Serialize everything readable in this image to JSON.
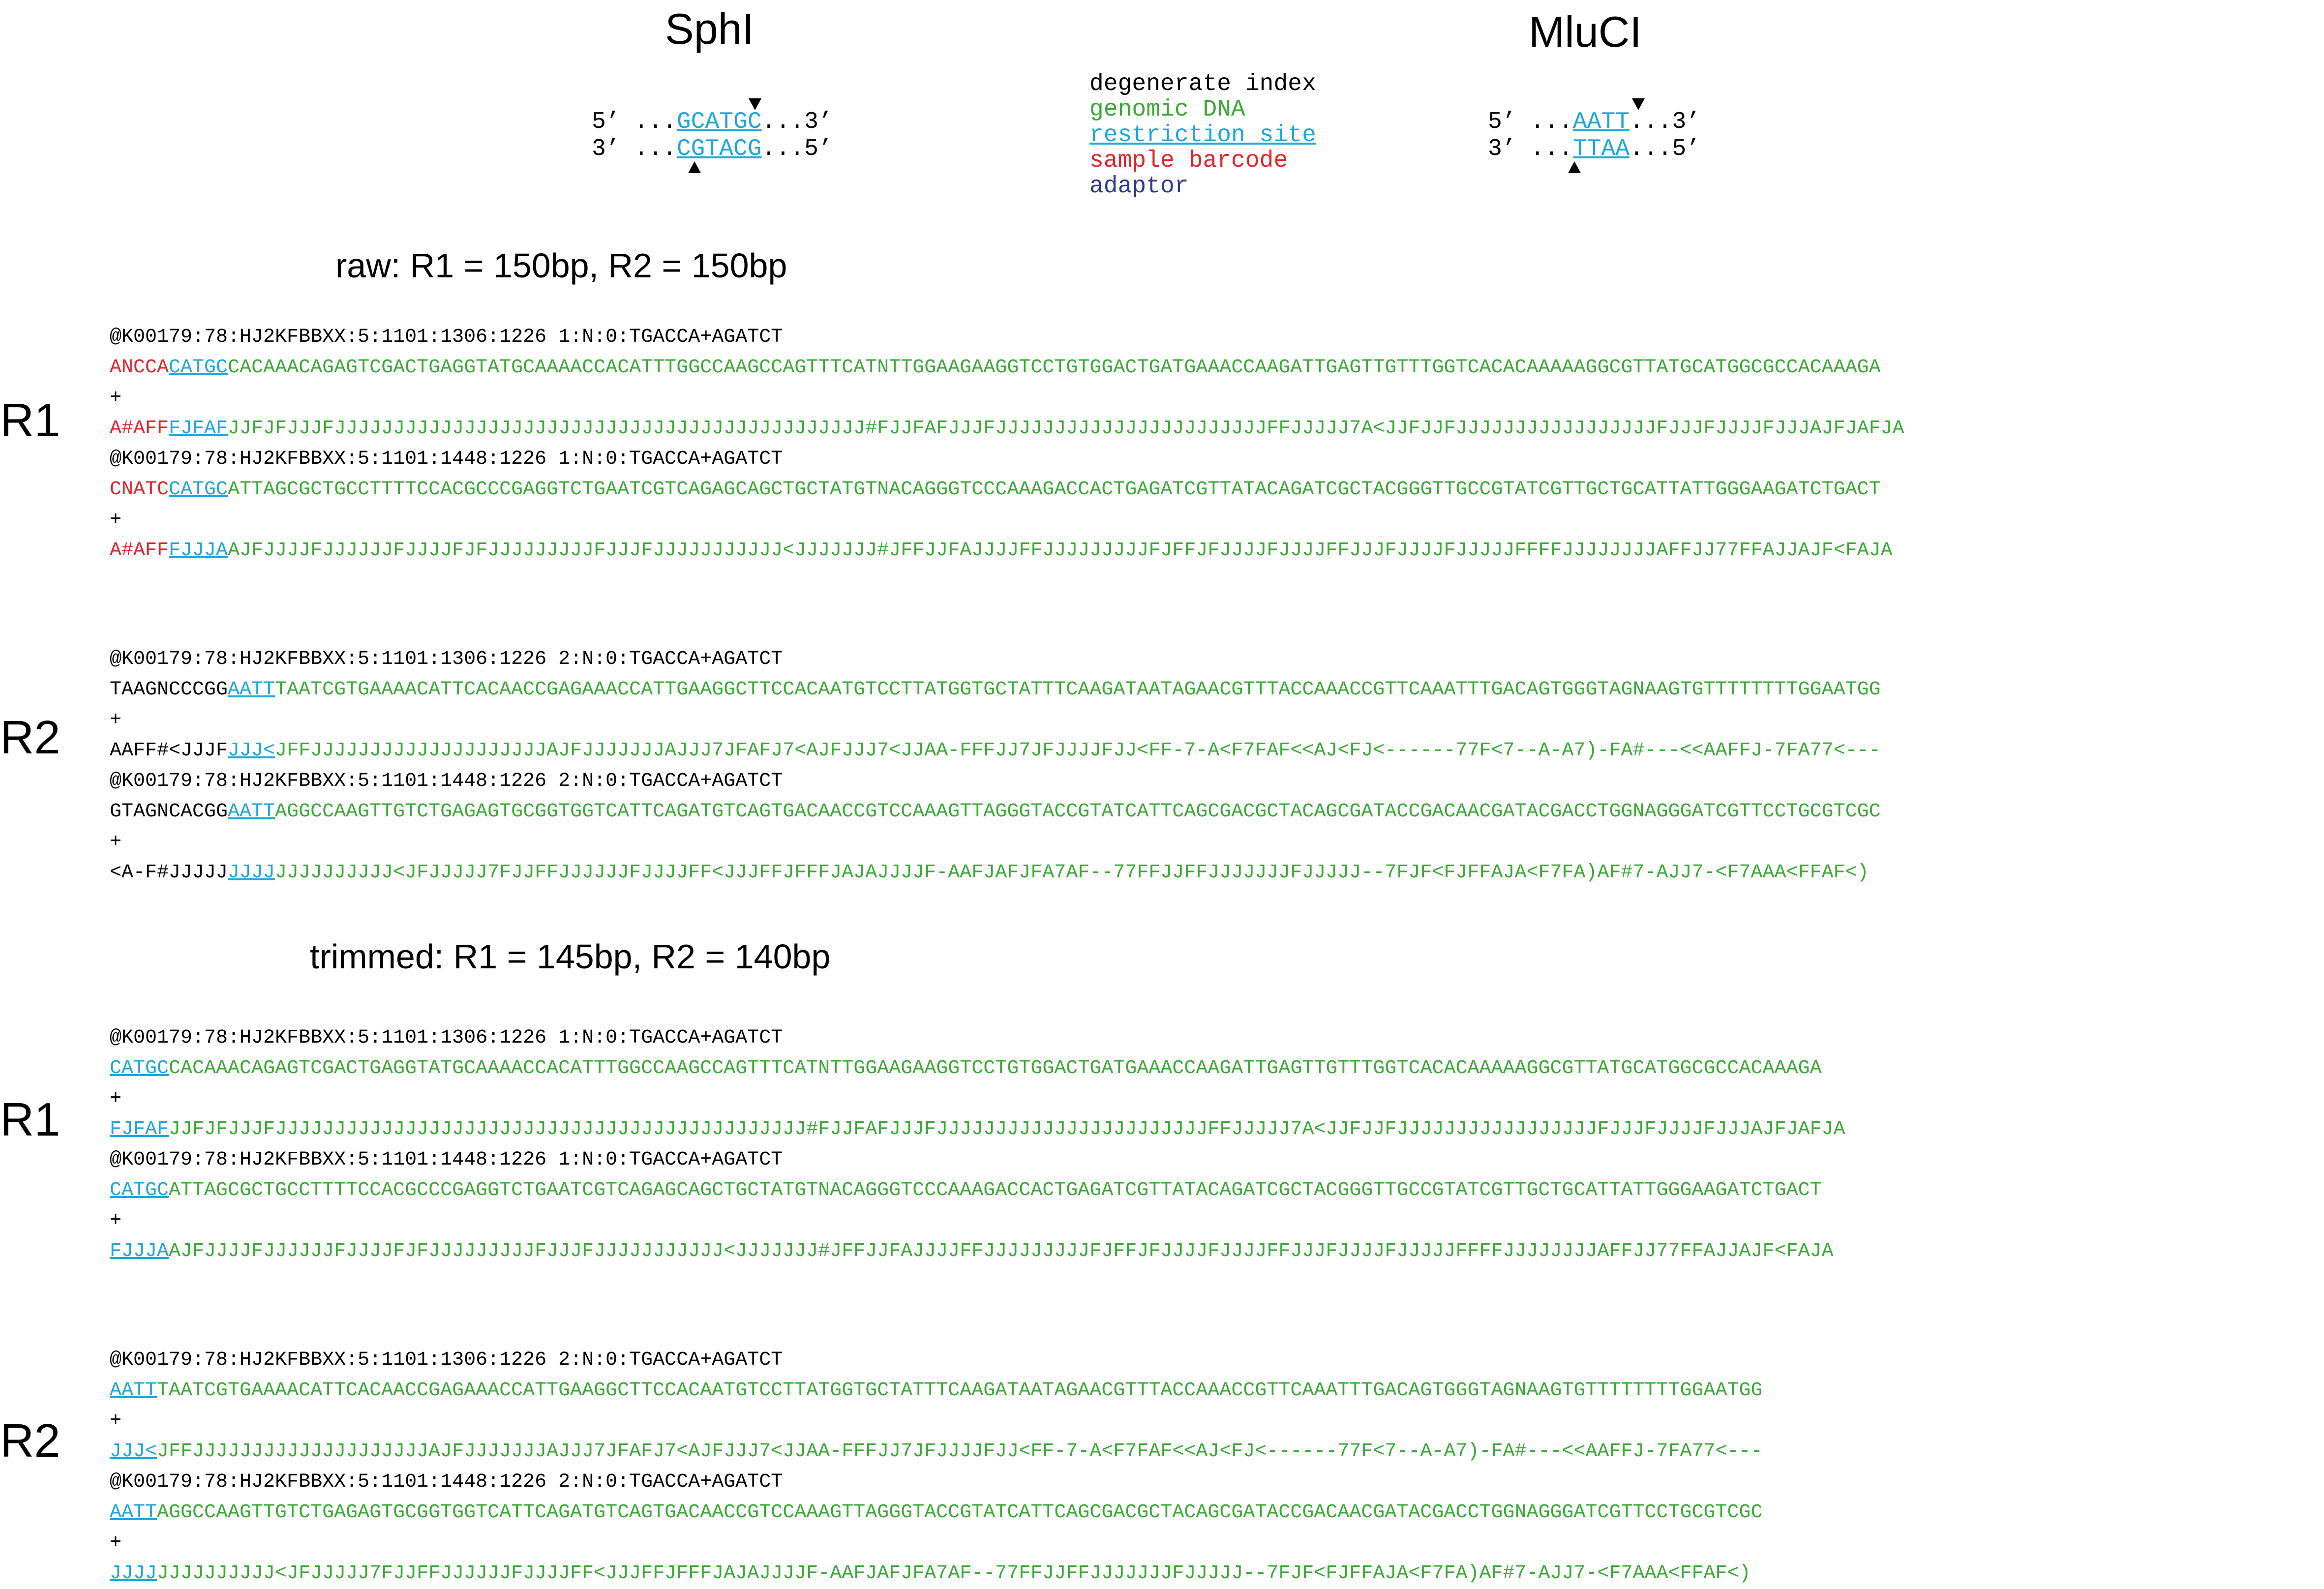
{
  "enzymes": [
    {
      "name": "SphI",
      "top": {
        "pre": "5’ ...",
        "site": "GCATGC",
        "post": "...3’"
      },
      "bottom": {
        "pre": "3’ ...",
        "site": "CGTACG",
        "post": "...5’"
      }
    },
    {
      "name": "MluCI",
      "top": {
        "pre": "5’ ...",
        "site": "AATT",
        "post": "...3’"
      },
      "bottom": {
        "pre": "3’ ...",
        "site": "TTAA",
        "post": "...5’"
      }
    }
  ],
  "legend": {
    "degenerate_index": "degenerate index",
    "genomic_dna": "genomic DNA",
    "restriction_site": "restriction site",
    "sample_barcode": "sample barcode",
    "adaptor": "adaptor"
  },
  "colors": {
    "black": "#000000",
    "genomic": "#3aa935",
    "restriction": "#1ca6dd",
    "barcode": "#e8212a",
    "adaptor": "#2b3990"
  },
  "sections": {
    "raw": {
      "heading": "raw: R1 = 150bp, R2 = 150bp",
      "r1_label": "R1",
      "r2_label": "R2",
      "r1": {
        "read1": {
          "header": "@K00179:78:HJ2KFBBXX:5:1101:1306:1226 1:N:0:TGACCA+AGATCT",
          "seq": {
            "barcode": "ANCCA",
            "site": "CATGC",
            "rest": "CACAAACAGAGTCGACTGAGGTATGCAAAACCACATTTGGCCAAGCCAGTTTCATNTTGGAAGAAGGTCCTGTGGACTGATGAAACCAAGATTGAGTTGTTTGGTCACACAAAAAGGCGTTATGCATGGCGCCACAAAGA"
          },
          "plus": "+",
          "qual": {
            "barcode": "A#AFF",
            "site": "FJFAF",
            "rest": "JJFJFJJJFJJJJJJJJJJJJJJJJJJJJJJJJJJJJJJJJJJJJJJJJJJJJJ#FJJFAFJJJFJJJJJJJJJJJJJJJJJJJJJJJFFJJJJJ7A<JJFJJFJJJJJJJJJJJJJJJJJFJJJFJJJJFJJJAJFJAFJA"
          }
        },
        "read2": {
          "header": "@K00179:78:HJ2KFBBXX:5:1101:1448:1226 1:N:0:TGACCA+AGATCT",
          "seq": {
            "barcode": "CNATC",
            "site": "CATGC",
            "rest": "ATTAGCGCTGCCTTTTCCACGCCCGAGGTCTGAATCGTCAGAGCAGCTGCTATGTNACAGGGTCCCAAAGACCACTGAGATCGTTATACAGATCGCTACGGGTTGCCGTATCGTTGCTGCATTATTGGGAAGATCTGACT"
          },
          "plus": "+",
          "qual": {
            "barcode": "A#AFF",
            "site": "FJJJA",
            "rest": "AJFJJJJFJJJJJJFJJJJFJFJJJJJJJJJFJJJFJJJJJJJJJJJ<JJJJJJJ#JFFJJFAJJJJFFJJJJJJJJJFJFFJFJJJJFJJJJFFJJJFJJJJFJJJJJFFFFJJJJJJJJAFFJJ77FFAJJAJF<FAJA"
          }
        }
      },
      "r2": {
        "read1": {
          "header": "@K00179:78:HJ2KFBBXX:5:1101:1306:1226 2:N:0:TGACCA+AGATCT",
          "seq": {
            "prefix": "TAAGNCCCGG",
            "site": "AATT",
            "rest": "TAATCGTGAAAACATTCACAACCGAGAAACCATTGAAGGCTTCCACAATGTCCTTATGGTGCTATTTCAAGATAATAGAACGTTTACCAAACCGTTCAAATTTGACAGTGGGTAGNAAGTGTTTTTTTTGGAATGG"
          },
          "plus": "+",
          "qual": {
            "prefix": "AAFF#<JJJF",
            "site": "JJJ<",
            "rest": "JFFJJJJJJJJJJJJJJJJJJJJAJFJJJJJJJAJJJ7JFAFJ7<AJFJJJ7<JJAA-FFFJJ7JFJJJJFJJ<FF-7-A<F7FAF<<AJ<FJ<------77F<7--A-A7)-FA#---<<AAFFJ-7FA77<---"
          }
        },
        "read2": {
          "header": "@K00179:78:HJ2KFBBXX:5:1101:1448:1226 2:N:0:TGACCA+AGATCT",
          "seq": {
            "prefix": "GTAGNCACGG",
            "site": "AATT",
            "rest": "AGGCCAAGTTGTCTGAGAGTGCGGTGGTCATTCAGATGTCAGTGACAACCGTCCAAAGTTAGGGTACCGTATCATTCAGCGACGCTACAGCGATACCGACAACGATACGACCTGGNAGGGATCGTTCCTGCGTCGC"
          },
          "plus": "+",
          "qual": {
            "prefix": "<A-F#JJJJJ",
            "site": "JJJJ",
            "rest": "JJJJJJJJJJ<JFJJJJJ7FJJFFJJJJJJFJJJJFF<JJJFFJFFFJAJAJJJJF-AAFJAFJFA7AF--77FFJJFFJJJJJJJFJJJJJ--7FJF<FJFFAJA<F7FA)AF#7-AJJ7-<F7AAA<FFAF<)"
          }
        }
      }
    },
    "trimmed": {
      "heading": "trimmed: R1 = 145bp, R2 = 140bp",
      "r1_label": "R1",
      "r2_label": "R2",
      "r1": {
        "read1": {
          "header": "@K00179:78:HJ2KFBBXX:5:1101:1306:1226 1:N:0:TGACCA+AGATCT",
          "seq": {
            "site": "CATGC",
            "rest": "CACAAACAGAGTCGACTGAGGTATGCAAAACCACATTTGGCCAAGCCAGTTTCATNTTGGAAGAAGGTCCTGTGGACTGATGAAACCAAGATTGAGTTGTTTGGTCACACAAAAAGGCGTTATGCATGGCGCCACAAAGA"
          },
          "plus": "+",
          "qual": {
            "site": "FJFAF",
            "rest": "JJFJFJJJFJJJJJJJJJJJJJJJJJJJJJJJJJJJJJJJJJJJJJJJJJJJJJ#FJJFAFJJJFJJJJJJJJJJJJJJJJJJJJJJJFFJJJJJ7A<JJFJJFJJJJJJJJJJJJJJJJJFJJJFJJJJFJJJAJFJAFJA"
          }
        },
        "read2": {
          "header": "@K00179:78:HJ2KFBBXX:5:1101:1448:1226 1:N:0:TGACCA+AGATCT",
          "seq": {
            "site": "CATGC",
            "rest": "ATTAGCGCTGCCTTTTCCACGCCCGAGGTCTGAATCGTCAGAGCAGCTGCTATGTNACAGGGTCCCAAAGACCACTGAGATCGTTATACAGATCGCTACGGGTTGCCGTATCGTTGCTGCATTATTGGGAAGATCTGACT"
          },
          "plus": "+",
          "qual": {
            "site": "FJJJA",
            "rest": "AJFJJJJFJJJJJJFJJJJFJFJJJJJJJJJFJJJFJJJJJJJJJJJ<JJJJJJJ#JFFJJFAJJJJFFJJJJJJJJJFJFFJFJJJJFJJJJFFJJJFJJJJFJJJJJFFFFJJJJJJJJAFFJJ77FFAJJAJF<FAJA"
          }
        }
      },
      "r2": {
        "read1": {
          "header": "@K00179:78:HJ2KFBBXX:5:1101:1306:1226 2:N:0:TGACCA+AGATCT",
          "seq": {
            "site": "AATT",
            "rest": "TAATCGTGAAAACATTCACAACCGAGAAACCATTGAAGGCTTCCACAATGTCCTTATGGTGCTATTTCAAGATAATAGAACGTTTACCAAACCGTTCAAATTTGACAGTGGGTAGNAAGTGTTTTTTTTGGAATGG"
          },
          "plus": "+",
          "qual": {
            "site": "JJJ<",
            "rest": "JFFJJJJJJJJJJJJJJJJJJJJAJFJJJJJJJAJJJ7JFAFJ7<AJFJJJ7<JJAA-FFFJJ7JFJJJJFJJ<FF-7-A<F7FAF<<AJ<FJ<------77F<7--A-A7)-FA#---<<AAFFJ-7FA77<---"
          }
        },
        "read2": {
          "header": "@K00179:78:HJ2KFBBXX:5:1101:1448:1226 2:N:0:TGACCA+AGATCT",
          "seq": {
            "site": "AATT",
            "rest": "AGGCCAAGTTGTCTGAGAGTGCGGTGGTCATTCAGATGTCAGTGACAACCGTCCAAAGTTAGGGTACCGTATCATTCAGCGACGCTACAGCGATACCGACAACGATACGACCTGGNAGGGATCGTTCCTGCGTCGC"
          },
          "plus": "+",
          "qual": {
            "site": "JJJJ",
            "rest": "JJJJJJJJJJ<JFJJJJJ7FJJFFJJJJJJFJJJJFF<JJJFFJFFFJAJAJJJJF-AAFJAFJFA7AF--77FFJJFFJJJJJJJFJJJJJ--7FJF<FJFFAJA<F7FA)AF#7-AJJ7-<F7AAA<FFAF<)"
          }
        }
      }
    }
  }
}
